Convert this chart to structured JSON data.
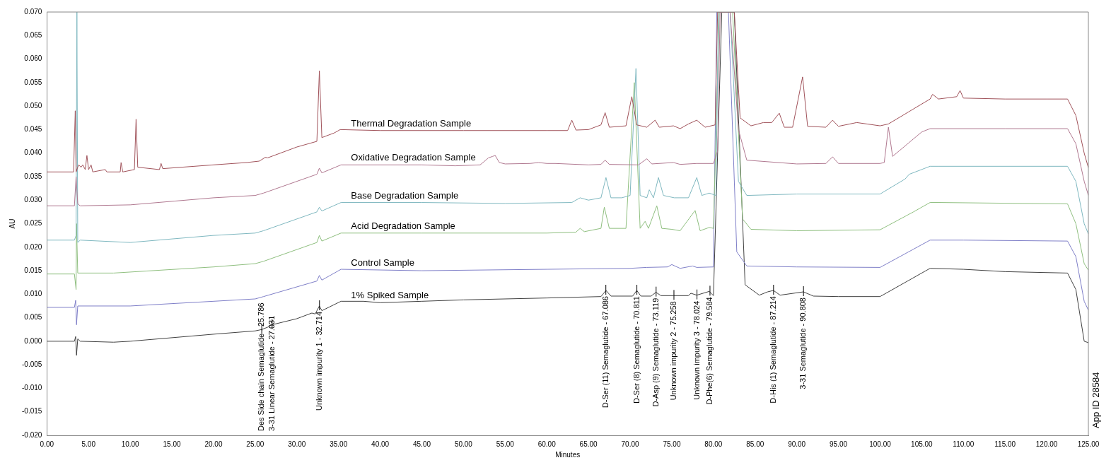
{
  "chart_data": {
    "type": "line",
    "xlabel": "Minutes",
    "ylabel": "AU",
    "legend": false,
    "grid": false,
    "marker": "none",
    "line_style": "solid",
    "xlim": [
      0,
      125
    ],
    "xticks": [
      {
        "value": 0,
        "label": "0.00"
      },
      {
        "value": 5,
        "label": "5.00"
      },
      {
        "value": 10,
        "label": "10.00"
      },
      {
        "value": 15,
        "label": "15.00"
      },
      {
        "value": 20,
        "label": "20.00"
      },
      {
        "value": 25,
        "label": "25.00"
      },
      {
        "value": 30,
        "label": "30.00"
      },
      {
        "value": 35,
        "label": "35.00"
      },
      {
        "value": 40,
        "label": "40.00"
      },
      {
        "value": 45,
        "label": "45.00"
      },
      {
        "value": 50,
        "label": "50.00"
      },
      {
        "value": 55,
        "label": "55.00"
      },
      {
        "value": 60,
        "label": "60.00"
      },
      {
        "value": 65,
        "label": "65.00"
      },
      {
        "value": 70,
        "label": "70.00"
      },
      {
        "value": 75,
        "label": "75.00"
      },
      {
        "value": 80,
        "label": "80.00"
      },
      {
        "value": 85,
        "label": "85.00"
      },
      {
        "value": 90,
        "label": "90.00"
      },
      {
        "value": 95,
        "label": "95.00"
      },
      {
        "value": 100,
        "label": "100.00"
      },
      {
        "value": 105,
        "label": "105.00"
      },
      {
        "value": 110,
        "label": "110.00"
      },
      {
        "value": 115,
        "label": "115.00"
      },
      {
        "value": 120,
        "label": "120.00"
      },
      {
        "value": 125,
        "label": "125.00"
      }
    ],
    "ylim": [
      -0.02,
      0.07
    ],
    "yticks": [
      {
        "value": -0.02,
        "label": "-0.020"
      },
      {
        "value": -0.015,
        "label": "-0.015"
      },
      {
        "value": -0.01,
        "label": "-0.010"
      },
      {
        "value": -0.005,
        "label": "-0.005"
      },
      {
        "value": 0,
        "label": "0.000"
      },
      {
        "value": 0.005,
        "label": "0.005"
      },
      {
        "value": 0.01,
        "label": "0.010"
      },
      {
        "value": 0.015,
        "label": "0.015"
      },
      {
        "value": 0.02,
        "label": "0.020"
      },
      {
        "value": 0.025,
        "label": "0.025"
      },
      {
        "value": 0.03,
        "label": "0.030"
      },
      {
        "value": 0.035,
        "label": "0.035"
      },
      {
        "value": 0.04,
        "label": "0.040"
      },
      {
        "value": 0.045,
        "label": "0.045"
      },
      {
        "value": 0.05,
        "label": "0.050"
      },
      {
        "value": 0.055,
        "label": "0.055"
      },
      {
        "value": 0.06,
        "label": "0.060"
      },
      {
        "value": 0.065,
        "label": "0.065"
      },
      {
        "value": 0.07,
        "label": "0.070"
      }
    ],
    "series": [
      {
        "name": "Thermal Degradation Sample",
        "color": "#a0525a",
        "x": [
          0,
          3.2,
          3.4,
          3.5,
          3.8,
          4.1,
          4.3,
          4.6,
          4.8,
          5.0,
          5.3,
          5.5,
          7.0,
          7.2,
          8.8,
          8.9,
          9.1,
          10.5,
          10.7,
          10.9,
          13.5,
          13.7,
          13.9,
          20,
          24,
          25.5,
          26.2,
          26.5,
          30,
          32.4,
          32.7,
          33.0,
          34.5,
          35.2,
          40,
          50,
          60,
          62.5,
          63,
          63.5,
          65,
          66.5,
          67,
          67.5,
          69.5,
          70.2,
          70.8,
          72,
          73,
          73.5,
          75.2,
          76,
          77,
          78,
          79,
          80.2,
          80.5,
          81.5,
          82.5,
          83.2,
          84.5,
          86,
          87,
          87.9,
          88.5,
          89.5,
          90.7,
          91.3,
          93.5,
          94.3,
          95,
          97.2,
          100,
          101,
          106,
          106.3,
          107,
          109.2,
          109.6,
          110,
          115,
          120,
          122.5,
          123.5,
          124.5,
          125
        ],
        "values": [
          0.036,
          0.036,
          0.049,
          0.036,
          0.0375,
          0.037,
          0.0375,
          0.0365,
          0.0395,
          0.0365,
          0.0375,
          0.036,
          0.0365,
          0.036,
          0.036,
          0.038,
          0.036,
          0.0365,
          0.0472,
          0.037,
          0.0365,
          0.0378,
          0.0367,
          0.0375,
          0.038,
          0.0383,
          0.0391,
          0.039,
          0.0413,
          0.0425,
          0.0575,
          0.0433,
          0.0443,
          0.045,
          0.0448,
          0.0448,
          0.0448,
          0.0448,
          0.047,
          0.0449,
          0.045,
          0.046,
          0.0486,
          0.0455,
          0.0458,
          0.052,
          0.046,
          0.0455,
          0.047,
          0.0455,
          0.0458,
          0.0452,
          0.0462,
          0.047,
          0.0455,
          0.046,
          0.07,
          0.07,
          0.07,
          0.0475,
          0.0458,
          0.0465,
          0.0465,
          0.0485,
          0.0455,
          0.0455,
          0.0562,
          0.0457,
          0.0455,
          0.047,
          0.0457,
          0.0465,
          0.0458,
          0.0462,
          0.0515,
          0.0525,
          0.0515,
          0.052,
          0.0533,
          0.0517,
          0.0515,
          0.0515,
          0.0515,
          0.048,
          0.04,
          0.0369
        ]
      },
      {
        "name": "Oxidative Degradation Sample",
        "color": "#b07890",
        "x": [
          0,
          3.3,
          3.5,
          3.7,
          4,
          10,
          20,
          25,
          26,
          32.4,
          32.7,
          33,
          35.3,
          45,
          49,
          52,
          53,
          53.5,
          53.8,
          54.3,
          55,
          58,
          59,
          60,
          61,
          65,
          66.5,
          67,
          67.5,
          71,
          72,
          72.6,
          75.2,
          76,
          78,
          80,
          80.5,
          80.8,
          82,
          83,
          84,
          90,
          93.5,
          94.3,
          95,
          100,
          100.5,
          101,
          101.5,
          105,
          106,
          115,
          122.5,
          123.5,
          124.5,
          125
        ],
        "values": [
          0.0288,
          0.0288,
          0.035,
          0.0292,
          0.0288,
          0.029,
          0.0305,
          0.031,
          0.0315,
          0.0355,
          0.0368,
          0.0358,
          0.0375,
          0.0375,
          0.0373,
          0.0375,
          0.039,
          0.0393,
          0.0395,
          0.038,
          0.0377,
          0.0378,
          0.038,
          0.0378,
          0.0378,
          0.0375,
          0.0376,
          0.0385,
          0.0376,
          0.0375,
          0.0388,
          0.0377,
          0.038,
          0.0376,
          0.0378,
          0.0378,
          0.0405,
          0.07,
          0.07,
          0.045,
          0.0385,
          0.0377,
          0.0378,
          0.0392,
          0.0378,
          0.0378,
          0.038,
          0.0455,
          0.0393,
          0.0445,
          0.0452,
          0.0452,
          0.0452,
          0.042,
          0.034,
          0.031
        ]
      },
      {
        "name": "Base Degradation Sample",
        "color": "#7fb8c0",
        "x": [
          0,
          3.3,
          3.5,
          3.6,
          3.7,
          4,
          10,
          20,
          25,
          26,
          32.4,
          32.7,
          33,
          35.3,
          45,
          55,
          63,
          64,
          65,
          66.5,
          67.1,
          67.7,
          69,
          70,
          70.7,
          71.2,
          72,
          72.3,
          72.8,
          73.4,
          74,
          75.3,
          77,
          78,
          78.6,
          79.5,
          80.3,
          80.6,
          82,
          83,
          84,
          90,
          100,
          103,
          103.5,
          106,
          107,
          122.5,
          123.5,
          124.5,
          125
        ],
        "values": [
          0.0215,
          0.0215,
          0.0225,
          0.07,
          0.021,
          0.0215,
          0.021,
          0.0225,
          0.023,
          0.0235,
          0.0275,
          0.0285,
          0.0277,
          0.0295,
          0.0295,
          0.0293,
          0.0295,
          0.0305,
          0.03,
          0.0305,
          0.0348,
          0.0305,
          0.0305,
          0.031,
          0.058,
          0.031,
          0.0305,
          0.0322,
          0.0305,
          0.0348,
          0.031,
          0.0305,
          0.0305,
          0.0348,
          0.031,
          0.0315,
          0.031,
          0.07,
          0.07,
          0.034,
          0.031,
          0.0313,
          0.0313,
          0.0345,
          0.0355,
          0.0372,
          0.0372,
          0.0372,
          0.034,
          0.025,
          0.0228
        ]
      },
      {
        "name": "Acid Degradation Sample",
        "color": "#8fbf7f",
        "x": [
          0,
          3.3,
          3.5,
          3.55,
          3.7,
          8,
          20,
          25,
          26,
          32.4,
          32.7,
          33,
          35.3,
          45,
          60,
          63.5,
          64,
          64.5,
          66.5,
          66.9,
          67.5,
          69.5,
          70.5,
          71.2,
          71.8,
          72.2,
          73.2,
          73.8,
          75,
          76,
          77.8,
          78.4,
          79.5,
          80,
          80.7,
          82.3,
          83.5,
          84.5,
          90,
          100,
          104,
          106,
          107,
          122.5,
          123.5,
          124.5,
          125
        ],
        "values": [
          0.0143,
          0.0143,
          0.011,
          0.025,
          0.0145,
          0.0145,
          0.0158,
          0.0165,
          0.017,
          0.021,
          0.0225,
          0.0213,
          0.023,
          0.023,
          0.023,
          0.0232,
          0.024,
          0.0233,
          0.024,
          0.0285,
          0.024,
          0.024,
          0.055,
          0.024,
          0.0255,
          0.024,
          0.0288,
          0.024,
          0.0238,
          0.0235,
          0.0278,
          0.0235,
          0.0242,
          0.024,
          0.07,
          0.07,
          0.026,
          0.0238,
          0.0235,
          0.0237,
          0.0275,
          0.0295,
          0.0295,
          0.0292,
          0.025,
          0.0165,
          0.0151
        ]
      },
      {
        "name": "Control Sample",
        "color": "#7f7fc8",
        "x": [
          0,
          3.3,
          3.45,
          3.55,
          3.7,
          10,
          20,
          25,
          26,
          32.4,
          32.7,
          33,
          35.3,
          45,
          60,
          70,
          72,
          74.5,
          75,
          76,
          77.5,
          78,
          80,
          80.4,
          81.8,
          82.8,
          84,
          90,
          100,
          106,
          110,
          122.5,
          123.5,
          124.5,
          125
        ],
        "values": [
          0.0072,
          0.0072,
          0.0087,
          0.0035,
          0.0075,
          0.0075,
          0.0085,
          0.009,
          0.0095,
          0.0128,
          0.014,
          0.013,
          0.0153,
          0.015,
          0.0153,
          0.0155,
          0.0157,
          0.0158,
          0.0163,
          0.0155,
          0.016,
          0.0157,
          0.0158,
          0.07,
          0.07,
          0.019,
          0.016,
          0.0158,
          0.0157,
          0.0215,
          0.0215,
          0.0213,
          0.018,
          0.0085,
          0.0066
        ]
      },
      {
        "name": "1% Spiked Sample",
        "color": "#404040",
        "x": [
          0,
          3.3,
          3.45,
          3.55,
          3.7,
          4,
          8,
          10,
          20,
          25,
          25.8,
          26.5,
          27,
          30,
          31.8,
          32.2,
          32.7,
          33,
          35.3,
          38,
          40,
          45,
          50,
          60,
          66.5,
          67.1,
          67.7,
          70.3,
          70.8,
          71.3,
          72.5,
          73.1,
          73.7,
          75.2,
          77,
          77.3,
          78,
          79.5,
          80,
          81,
          82.5,
          83.8,
          85.5,
          86.5,
          87.2,
          88,
          90.8,
          92,
          95,
          100,
          106,
          110,
          115,
          122.5,
          123.5,
          124.5,
          125
        ],
        "values": [
          0,
          0,
          0.001,
          -0.003,
          0.0005,
          0,
          -0.0002,
          0,
          0.0015,
          0.0022,
          0.0025,
          0.003,
          0.0035,
          0.0048,
          0.006,
          0.0058,
          0.0075,
          0.0065,
          0.0085,
          0.0085,
          0.0082,
          0.0085,
          0.0088,
          0.0092,
          0.0095,
          0.0108,
          0.0096,
          0.0096,
          0.0108,
          0.0096,
          0.0096,
          0.0104,
          0.0097,
          0.0097,
          0.0097,
          0.0102,
          0.0098,
          0.0106,
          0.0097,
          0.07,
          0.07,
          0.012,
          0.0098,
          0.0105,
          0.0108,
          0.0098,
          0.0105,
          0.0096,
          0.0095,
          0.0095,
          0.0155,
          0.0153,
          0.0148,
          0.0145,
          0.011,
          0,
          -0.0003
        ]
      }
    ],
    "annotations": [
      {
        "text": "Des Side chain Semaglutide - 25.786",
        "x": 25.786,
        "y": 0.0025
      },
      {
        "text": "3-31 Linear Semaglutide - 27.031",
        "x": 27.031,
        "y": 0.0035
      },
      {
        "text": "Unknown impurity 1 - 32.714",
        "x": 32.714,
        "y": 0.0075
      },
      {
        "text": "D-Ser (11) Semaglutide - 67.086",
        "x": 67.086,
        "y": 0.0108
      },
      {
        "text": "D-Ser (8) Semaglutide - 70.811",
        "x": 70.811,
        "y": 0.0108
      },
      {
        "text": "D-Asp (9) Semaglutide - 73.119",
        "x": 73.119,
        "y": 0.0104
      },
      {
        "text": "Unknown impurity 2 - 75.258",
        "x": 75.258,
        "y": 0.0097
      },
      {
        "text": "Unknown impurity 3 - 78.024",
        "x": 78.024,
        "y": 0.0098
      },
      {
        "text": "D-Phe(6) Semaglutide - 79.584",
        "x": 79.584,
        "y": 0.0106
      },
      {
        "text": "D-His (1) Semaglutide - 87.214",
        "x": 87.214,
        "y": 0.0108
      },
      {
        "text": "3-31 Semaglutide - 90.808",
        "x": 90.808,
        "y": 0.0105
      },
      "App ID 28584"
    ]
  }
}
